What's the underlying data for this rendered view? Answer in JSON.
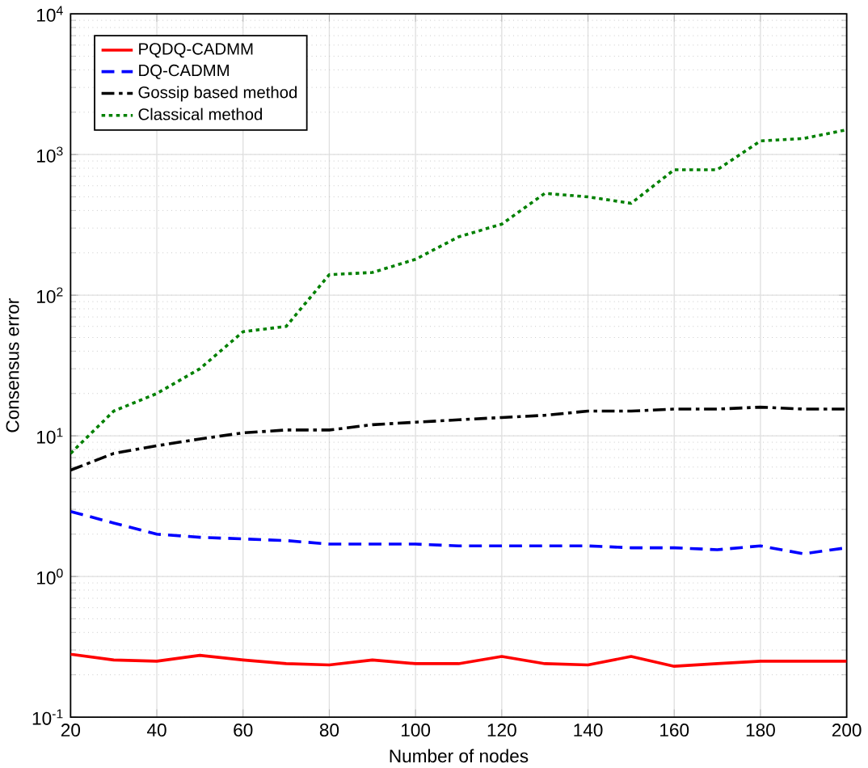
{
  "chart_data": {
    "type": "line",
    "xlabel": "Number of nodes",
    "ylabel": "Consensus error",
    "log": "y",
    "grid": true,
    "legend": "top left",
    "marker": "none",
    "x": [
      20,
      30,
      40,
      50,
      60,
      70,
      80,
      90,
      100,
      110,
      120,
      130,
      140,
      150,
      160,
      170,
      180,
      190,
      200
    ],
    "xlim": [
      20,
      200
    ],
    "xticks": [
      20,
      40,
      60,
      80,
      100,
      120,
      140,
      160,
      180,
      200
    ],
    "ylim": [
      0.1,
      10000
    ],
    "yticks": [
      {
        "value": 0.1,
        "label": "10$^{-1}$"
      },
      {
        "value": 1,
        "label": "10$^{0}$"
      },
      {
        "value": 10,
        "label": "10$^{1}$"
      },
      {
        "value": 100,
        "label": "10$^{2}$"
      },
      {
        "value": 1000,
        "label": "10$^{3}$"
      },
      {
        "value": 10000,
        "label": "10$^{4}$"
      }
    ],
    "series": [
      {
        "name": "PQDQ-CADMM",
        "color": "#ff0000",
        "line_style": "solid",
        "values": [
          0.28,
          0.255,
          0.25,
          0.275,
          0.255,
          0.24,
          0.235,
          0.255,
          0.24,
          0.24,
          0.27,
          0.24,
          0.235,
          0.27,
          0.23,
          0.24,
          0.25,
          0.25,
          0.25
        ]
      },
      {
        "name": "DQ-CADMM",
        "color": "#0000ff",
        "line_style": "dashed",
        "values": [
          2.9,
          2.4,
          2.0,
          1.9,
          1.85,
          1.8,
          1.7,
          1.7,
          1.7,
          1.65,
          1.65,
          1.65,
          1.65,
          1.6,
          1.6,
          1.55,
          1.65,
          1.45,
          1.6
        ]
      },
      {
        "name": "Gossip based method",
        "color": "#000000",
        "line_style": "dashdot",
        "values": [
          5.7,
          7.5,
          8.5,
          9.5,
          10.5,
          11,
          11,
          12,
          12.5,
          13,
          13.5,
          14,
          15,
          15,
          15.5,
          15.5,
          16,
          15.5,
          15.5
        ]
      },
      {
        "name": "Classical method",
        "color": "#008000",
        "line_style": "dotted",
        "values": [
          7.5,
          15,
          20,
          30,
          55,
          60,
          140,
          145,
          180,
          260,
          320,
          530,
          500,
          450,
          780,
          780,
          1250,
          1300,
          1500
        ]
      }
    ]
  }
}
